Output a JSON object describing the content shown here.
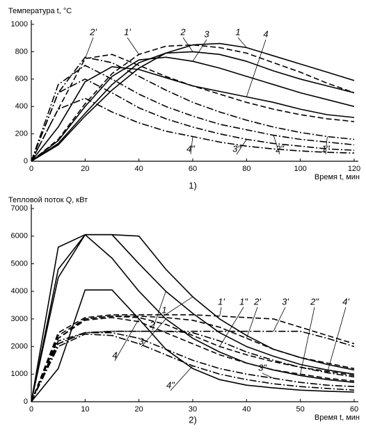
{
  "chart_data": [
    {
      "type": "line",
      "title": "Температура t, °C",
      "x_label": "Время t, мин",
      "caption": "1)",
      "x": [
        0,
        10,
        20,
        30,
        40,
        50,
        60,
        70,
        80,
        90,
        100,
        110,
        120
      ],
      "xlim": [
        0,
        120
      ],
      "xticks": [
        0,
        20,
        40,
        60,
        80,
        100,
        120
      ],
      "ylim": [
        0,
        1000
      ],
      "yticks": [
        0,
        200,
        400,
        600,
        800,
        1000
      ],
      "series": [
        {
          "name": "1",
          "color": "#000000",
          "dash": "solid",
          "values": [
            0,
            120,
            330,
            520,
            680,
            790,
            850,
            860,
            830,
            770,
            710,
            650,
            590
          ]
        },
        {
          "name": "2",
          "color": "#000000",
          "dash": "solid",
          "values": [
            0,
            130,
            350,
            560,
            720,
            790,
            800,
            780,
            730,
            660,
            600,
            550,
            500
          ]
        },
        {
          "name": "3",
          "color": "#000000",
          "dash": "solid",
          "values": [
            0,
            150,
            400,
            620,
            740,
            760,
            730,
            680,
            620,
            560,
            500,
            450,
            400
          ]
        },
        {
          "name": "4",
          "color": "#000000",
          "dash": "solid",
          "values": [
            0,
            250,
            580,
            690,
            670,
            610,
            550,
            510,
            470,
            430,
            380,
            340,
            320
          ]
        },
        {
          "name": "1'",
          "color": "#000000",
          "dash": "dashed",
          "values": [
            0,
            160,
            420,
            640,
            780,
            840,
            850,
            830,
            790,
            720,
            650,
            570,
            500
          ]
        },
        {
          "name": "2'",
          "color": "#000000",
          "dash": "dashed",
          "values": [
            0,
            380,
            750,
            780,
            700,
            620,
            550,
            490,
            430,
            380,
            340,
            310,
            290
          ]
        },
        {
          "name": "1\"",
          "color": "#000000",
          "dash": "dashdot",
          "values": [
            0,
            500,
            760,
            720,
            620,
            520,
            430,
            360,
            300,
            250,
            210,
            180,
            160
          ]
        },
        {
          "name": "2\"",
          "color": "#000000",
          "dash": "dashdot",
          "values": [
            0,
            560,
            700,
            600,
            490,
            400,
            330,
            270,
            230,
            190,
            160,
            140,
            120
          ]
        },
        {
          "name": "3\"",
          "color": "#000000",
          "dash": "dashdot",
          "values": [
            0,
            500,
            600,
            500,
            390,
            310,
            250,
            200,
            160,
            130,
            110,
            90,
            80
          ]
        },
        {
          "name": "4\"",
          "color": "#000000",
          "dash": "dashdot",
          "values": [
            0,
            380,
            460,
            360,
            280,
            220,
            180,
            140,
            110,
            90,
            75,
            65,
            60
          ]
        }
      ]
    },
    {
      "type": "line",
      "title": "Тепловой поток Q, кВт",
      "x_label": "Время t, мин",
      "caption": "2)",
      "x": [
        0,
        5,
        10,
        15,
        20,
        25,
        30,
        35,
        40,
        45,
        50,
        55,
        60
      ],
      "xlim": [
        0,
        60
      ],
      "xticks": [
        0,
        10,
        20,
        30,
        40,
        50,
        60
      ],
      "ylim": [
        0,
        7000
      ],
      "yticks": [
        0,
        1000,
        2000,
        3000,
        4000,
        5000,
        6000,
        7000
      ],
      "series": [
        {
          "name": "1",
          "color": "#000000",
          "dash": "solid",
          "values": [
            0,
            4500,
            6050,
            6050,
            6000,
            4800,
            3800,
            3000,
            2400,
            1900,
            1600,
            1350,
            1150
          ]
        },
        {
          "name": "2",
          "color": "#000000",
          "dash": "solid",
          "values": [
            0,
            4800,
            6050,
            6050,
            5000,
            4000,
            3200,
            2500,
            2000,
            1650,
            1350,
            1150,
            1000
          ]
        },
        {
          "name": "3",
          "color": "#000000",
          "dash": "solid",
          "values": [
            0,
            5600,
            6050,
            5200,
            4000,
            3000,
            2300,
            1800,
            1400,
            1150,
            950,
            800,
            700
          ]
        },
        {
          "name": "4",
          "color": "#000000",
          "dash": "solid",
          "values": [
            0,
            1200,
            4050,
            4050,
            3000,
            1900,
            1200,
            800,
            600,
            500,
            420,
            380,
            350
          ]
        },
        {
          "name": "1'",
          "color": "#000000",
          "dash": "dashed",
          "values": [
            0,
            2500,
            3050,
            3150,
            3150,
            3150,
            3150,
            3100,
            3050,
            3000,
            2700,
            2400,
            2100
          ]
        },
        {
          "name": "2'",
          "color": "#000000",
          "dash": "dashed",
          "values": [
            0,
            2300,
            3000,
            3100,
            3100,
            3050,
            2950,
            2700,
            2300,
            1900,
            1600,
            1400,
            1200
          ]
        },
        {
          "name": "3'",
          "color": "#000000",
          "dash": "dashdot",
          "values": [
            0,
            2200,
            2500,
            2550,
            2550,
            2550,
            2550,
            2550,
            2550,
            2550,
            2550,
            2300,
            2000
          ]
        },
        {
          "name": "4'",
          "color": "#000000",
          "dash": "dashdot",
          "values": [
            0,
            2100,
            2500,
            2550,
            2550,
            2550,
            2500,
            2200,
            1800,
            1500,
            1250,
            1050,
            900
          ]
        },
        {
          "name": "1\"",
          "color": "#000000",
          "dash": "dashed",
          "values": [
            0,
            2400,
            3000,
            3100,
            3050,
            2800,
            2400,
            2000,
            1700,
            1450,
            1250,
            1100,
            950
          ]
        },
        {
          "name": "2\"",
          "color": "#000000",
          "dash": "dashed",
          "values": [
            0,
            2300,
            2950,
            3050,
            2900,
            2500,
            2100,
            1700,
            1400,
            1150,
            1000,
            850,
            750
          ]
        },
        {
          "name": "3\"",
          "color": "#000000",
          "dash": "dashdot",
          "values": [
            0,
            2100,
            2500,
            2500,
            2300,
            1900,
            1500,
            1200,
            1000,
            850,
            700,
            600,
            550
          ]
        },
        {
          "name": "4\"",
          "color": "#000000",
          "dash": "dashdot",
          "values": [
            0,
            2000,
            2450,
            2400,
            2100,
            1700,
            1300,
            1000,
            800,
            650,
            550,
            480,
            420
          ]
        }
      ]
    }
  ]
}
